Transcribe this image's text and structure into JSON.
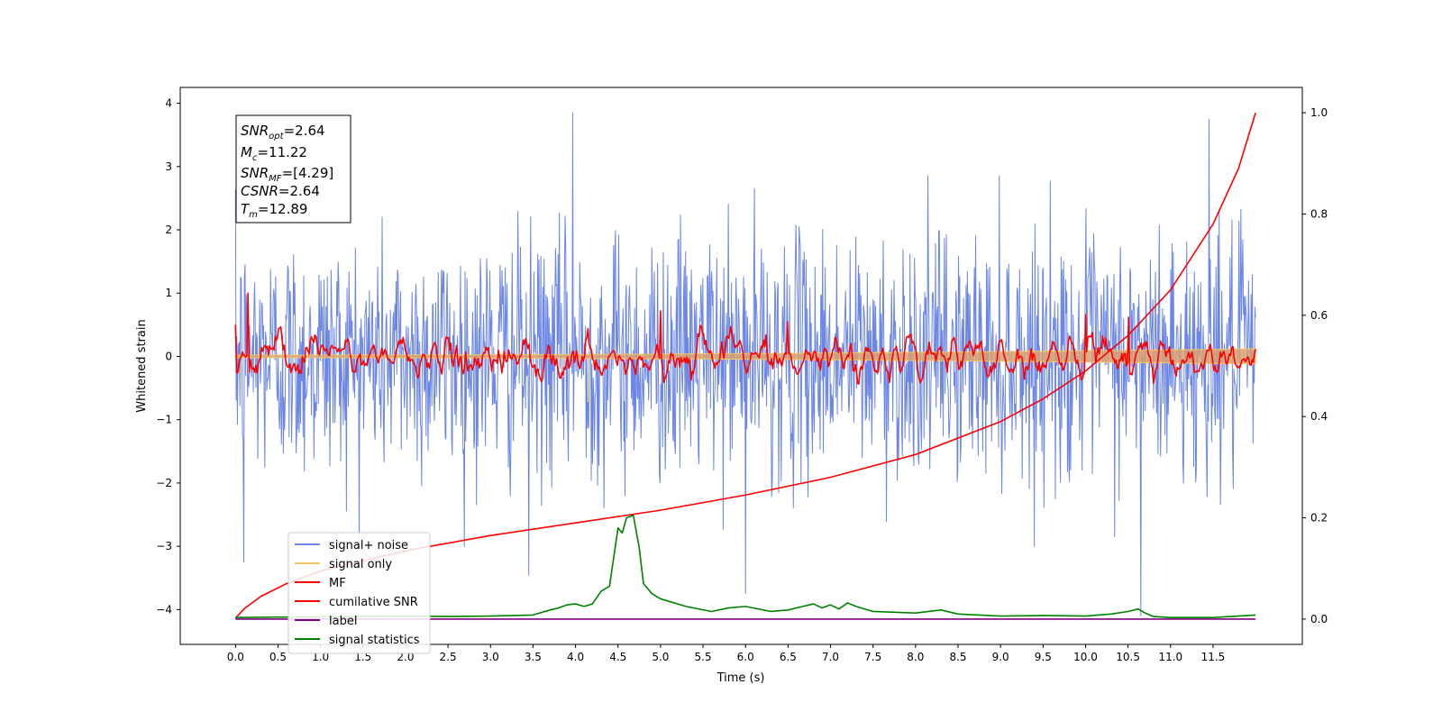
{
  "chart_data": {
    "type": "line",
    "xlabel": "Time (s)",
    "ylabel": "Whitened strain",
    "xlim": [
      -0.65,
      12.55
    ],
    "ylim": [
      -4.55,
      4.25
    ],
    "y2lim": [
      -0.05,
      1.05
    ],
    "x_ticks": [
      "0.0",
      "0.5",
      "1.0",
      "1.5",
      "2.0",
      "2.5",
      "3.0",
      "3.5",
      "4.0",
      "4.5",
      "5.0",
      "5.5",
      "6.0",
      "6.5",
      "7.0",
      "7.5",
      "8.0",
      "8.5",
      "9.0",
      "9.5",
      "10.0",
      "10.5",
      "11.0",
      "11.5"
    ],
    "y_ticks": [
      "4",
      "3",
      "2",
      "1",
      "0",
      "−1",
      "−2",
      "−3",
      "−4"
    ],
    "y2_ticks": [
      "1.0",
      "0.8",
      "0.6",
      "0.4",
      "0.2",
      "0.0"
    ],
    "legend_position": "lower-left",
    "colors": {
      "signal_noise": "#6b86e6",
      "signal_only": "#f0c766",
      "mf": "#ff0000",
      "cumulative_snr": "#ff0000",
      "label": "#800080",
      "signal_statistics": "#008000"
    },
    "annotation": {
      "lines": [
        {
          "main": "SNR",
          "sub": "opt",
          "value": "=2.64"
        },
        {
          "main": "M",
          "sub": "c",
          "value": "=11.22"
        },
        {
          "main": "SNR",
          "sub": "MF",
          "value": "=[4.29]"
        },
        {
          "main": "CSNR",
          "sub": "",
          "value": "=2.64"
        },
        {
          "main": "T",
          "sub": "m",
          "value": "=12.89"
        }
      ]
    },
    "series": [
      {
        "name": "signal+ noise",
        "axis": "left",
        "t_start": 0.0,
        "t_end": 12.0,
        "sample_count": 1600,
        "std": 0.95,
        "peaks": [
          [
            3.97,
            3.85
          ],
          [
            11.45,
            3.75
          ],
          [
            6.0,
            -3.75
          ],
          [
            10.65,
            -4.1
          ],
          [
            0.1,
            -3.25
          ],
          [
            3.45,
            -3.45
          ]
        ]
      },
      {
        "name": "signal only",
        "axis": "left",
        "t_start": 0.0,
        "t_end": 12.0,
        "band_start": 0.02,
        "band_end": 0.12
      },
      {
        "name": "MF",
        "axis": "left",
        "t_start": 0.0,
        "t_end": 12.0,
        "sample_count": 900,
        "std": 0.2,
        "peaks": [
          [
            0.15,
            1.0
          ],
          [
            0.0,
            0.5
          ],
          [
            5.0,
            0.72
          ],
          [
            10.0,
            0.66
          ],
          [
            10.5,
            0.62
          ],
          [
            6.5,
            0.55
          ]
        ]
      },
      {
        "name": "cumilative SNR",
        "axis": "right",
        "x": [
          0.0,
          0.1,
          0.3,
          0.6,
          1.0,
          2.0,
          3.0,
          4.0,
          5.0,
          6.0,
          7.0,
          8.0,
          9.0,
          9.5,
          10.0,
          10.5,
          11.0,
          11.5,
          11.8,
          12.0
        ],
        "y": [
          0.002,
          0.02,
          0.045,
          0.07,
          0.095,
          0.135,
          0.165,
          0.19,
          0.215,
          0.245,
          0.28,
          0.325,
          0.39,
          0.435,
          0.49,
          0.56,
          0.65,
          0.78,
          0.89,
          1.0
        ]
      },
      {
        "name": "label",
        "axis": "right",
        "x": [
          0.0,
          12.0
        ],
        "y": [
          0.0,
          0.0
        ]
      },
      {
        "name": "signal statistics",
        "axis": "right",
        "x": [
          0.0,
          0.5,
          1.0,
          1.5,
          2.0,
          2.5,
          3.0,
          3.5,
          3.7,
          3.8,
          3.9,
          4.0,
          4.1,
          4.2,
          4.3,
          4.4,
          4.5,
          4.55,
          4.6,
          4.68,
          4.75,
          4.8,
          4.9,
          5.0,
          5.3,
          5.6,
          5.8,
          6.0,
          6.3,
          6.5,
          6.8,
          6.9,
          7.0,
          7.1,
          7.2,
          7.3,
          7.5,
          8.0,
          8.3,
          8.5,
          9.0,
          9.5,
          10.0,
          10.3,
          10.5,
          10.62,
          10.7,
          10.8,
          11.0,
          11.5,
          12.0
        ],
        "y": [
          0.003,
          0.004,
          0.004,
          0.005,
          0.006,
          0.005,
          0.006,
          0.008,
          0.018,
          0.022,
          0.028,
          0.03,
          0.025,
          0.03,
          0.055,
          0.065,
          0.18,
          0.17,
          0.2,
          0.205,
          0.14,
          0.07,
          0.05,
          0.04,
          0.025,
          0.015,
          0.022,
          0.025,
          0.015,
          0.018,
          0.03,
          0.022,
          0.028,
          0.02,
          0.032,
          0.025,
          0.015,
          0.012,
          0.018,
          0.01,
          0.006,
          0.007,
          0.006,
          0.01,
          0.015,
          0.02,
          0.012,
          0.005,
          0.003,
          0.003,
          0.008
        ]
      }
    ]
  }
}
